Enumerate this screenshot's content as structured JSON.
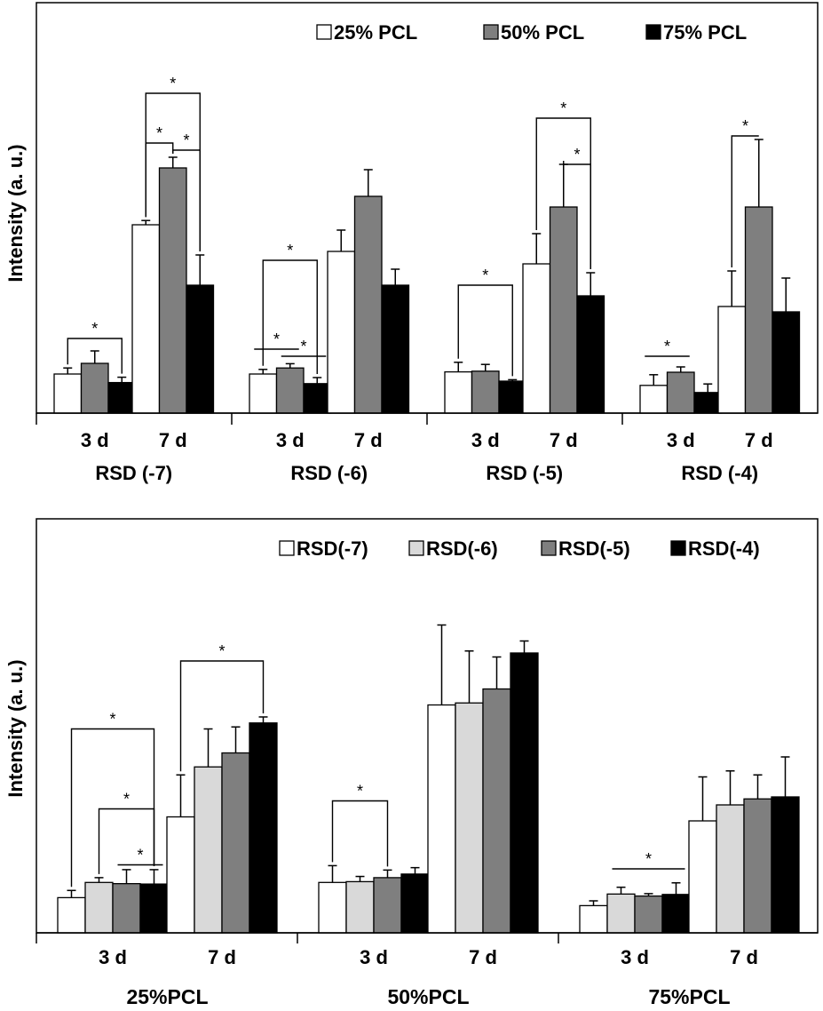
{
  "chart_data": [
    {
      "type": "bar",
      "ylabel": "Intensity (a. u.)",
      "ylim": [
        0,
        100
      ],
      "bar_stroke": "#000000",
      "groups": [
        {
          "label": "RSD (-7)",
          "subgroups": [
            {
              "label": "3 d",
              "values": [
                11,
                14,
                8.6
              ],
              "errors": [
                1.7,
                3.5,
                1.5
              ]
            },
            {
              "label": "7 d",
              "values": [
                53,
                69,
                36
              ],
              "errors": [
                1.2,
                3,
                8.5
              ]
            }
          ]
        },
        {
          "label": "RSD (-6)",
          "subgroups": [
            {
              "label": "3 d",
              "values": [
                11,
                12.7,
                8.3
              ],
              "errors": [
                1.3,
                1.2,
                1.7
              ]
            },
            {
              "label": "7 d",
              "values": [
                45.5,
                61,
                36
              ],
              "errors": [
                6,
                7.5,
                4.5
              ]
            }
          ]
        },
        {
          "label": "RSD (-5)",
          "subgroups": [
            {
              "label": "3 d",
              "values": [
                11.6,
                11.8,
                9
              ],
              "errors": [
                2.7,
                1.9,
                0.4
              ]
            },
            {
              "label": "7 d",
              "values": [
                42,
                58,
                33
              ],
              "errors": [
                8.5,
                12,
                6.5
              ]
            }
          ]
        },
        {
          "label": "RSD (-4)",
          "subgroups": [
            {
              "label": "3 d",
              "values": [
                7.8,
                11.5,
                5.8
              ],
              "errors": [
                3,
                1.5,
                2.4
              ]
            },
            {
              "label": "7 d",
              "values": [
                30,
                58,
                28.5
              ],
              "errors": [
                10,
                19,
                9.5
              ]
            }
          ]
        }
      ],
      "series": [
        {
          "name": "25% PCL",
          "color": "#ffffff"
        },
        {
          "name": "50% PCL",
          "color": "#7f7f7f"
        },
        {
          "name": "75% PCL",
          "color": "#000000"
        }
      ],
      "significance": [
        {
          "group": 0,
          "sub": 0,
          "a": 0,
          "b": 2,
          "style": "bracket",
          "level": 21,
          "text": "*"
        },
        {
          "group": 0,
          "sub": 1,
          "a": 0,
          "b": 1,
          "style": "bracket",
          "level": 76,
          "text": "*"
        },
        {
          "group": 0,
          "sub": 1,
          "a": 1,
          "b": 2,
          "style": "bracket",
          "level": 74,
          "text": "*"
        },
        {
          "group": 0,
          "sub": 1,
          "a": 0,
          "b": 2,
          "style": "bracket",
          "level": 90,
          "text": "*"
        },
        {
          "group": 1,
          "sub": 0,
          "a": 0,
          "b": 1,
          "style": "line",
          "level": 18,
          "text": "*"
        },
        {
          "group": 1,
          "sub": 0,
          "a": 1,
          "b": 2,
          "style": "line",
          "level": 16,
          "text": "*"
        },
        {
          "group": 1,
          "sub": 0,
          "a": 0,
          "b": 2,
          "style": "bracket",
          "level": 43,
          "text": "*"
        },
        {
          "group": 2,
          "sub": 0,
          "a": 0,
          "b": 2,
          "style": "bracket",
          "level": 36,
          "text": "*"
        },
        {
          "group": 2,
          "sub": 1,
          "a": 1,
          "b": 2,
          "style": "bracket",
          "level": 70,
          "text": "*"
        },
        {
          "group": 2,
          "sub": 1,
          "a": 0,
          "b": 2,
          "style": "bracket",
          "level": 83,
          "text": "*"
        },
        {
          "group": 3,
          "sub": 0,
          "a": 0,
          "b": 1,
          "style": "line",
          "level": 16,
          "text": "*"
        },
        {
          "group": 3,
          "sub": 1,
          "a": 0,
          "b": 1,
          "style": "bracket",
          "level": 78,
          "text": "*"
        }
      ]
    },
    {
      "type": "bar",
      "ylabel": "Intensity (a. u.)",
      "ylim": [
        0,
        100
      ],
      "bar_stroke": "#000000",
      "groups": [
        {
          "label": "25%PCL",
          "subgroups": [
            {
              "label": "3 d",
              "values": [
                8.8,
                12.6,
                12.3,
                12.2
              ],
              "errors": [
                1.8,
                1.2,
                3.5,
                3.6
              ]
            },
            {
              "label": "7 d",
              "values": [
                29,
                41.5,
                45,
                52.5
              ],
              "errors": [
                10.5,
                9.5,
                6.5,
                1.5
              ]
            }
          ]
        },
        {
          "label": "50%PCL",
          "subgroups": [
            {
              "label": "3 d",
              "values": [
                12.6,
                12.8,
                13.8,
                14.7
              ],
              "errors": [
                4.2,
                1.3,
                1.9,
                1.6
              ]
            },
            {
              "label": "7 d",
              "values": [
                57,
                57.5,
                61,
                70
              ],
              "errors": [
                20,
                13,
                8,
                3
              ]
            }
          ]
        },
        {
          "label": "75%PCL",
          "subgroups": [
            {
              "label": "3 d",
              "values": [
                6.8,
                9.7,
                9.2,
                9.6
              ],
              "errors": [
                1.2,
                1.7,
                0.6,
                2.9
              ]
            },
            {
              "label": "7 d",
              "values": [
                28,
                32,
                33.5,
                34
              ],
              "errors": [
                11,
                8.5,
                6,
                10
              ]
            }
          ]
        }
      ],
      "series": [
        {
          "name": "RSD(-7)",
          "color": "#ffffff"
        },
        {
          "name": "RSD(-6)",
          "color": "#d9d9d9"
        },
        {
          "name": "RSD(-5)",
          "color": "#7f7f7f"
        },
        {
          "name": "RSD(-4)",
          "color": "#000000"
        }
      ],
      "significance": [
        {
          "group": 0,
          "sub": 0,
          "a": 0,
          "b": 3,
          "style": "bracket",
          "level": 51,
          "text": "*"
        },
        {
          "group": 0,
          "sub": 0,
          "a": 1,
          "b": 3,
          "style": "bracket",
          "level": 31,
          "text": "*"
        },
        {
          "group": 0,
          "sub": 0,
          "a": 2,
          "b": 3,
          "style": "line",
          "level": 17,
          "text": "*"
        },
        {
          "group": 0,
          "sub": 1,
          "a": 0,
          "b": 3,
          "style": "bracket",
          "level": 68,
          "text": "*"
        },
        {
          "group": 1,
          "sub": 0,
          "a": 0,
          "b": 2,
          "style": "bracket",
          "level": 33,
          "text": "*"
        },
        {
          "group": 2,
          "sub": 0,
          "a": 1,
          "b": 3,
          "style": "line",
          "level": 16,
          "text": "*"
        }
      ]
    }
  ]
}
